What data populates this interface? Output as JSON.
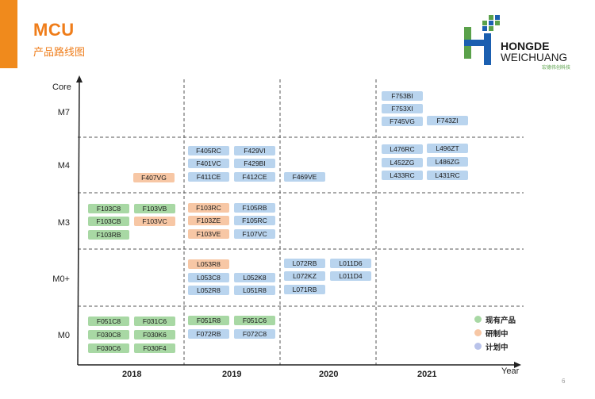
{
  "header": {
    "title": "MCU",
    "subtitle": "产品路线图"
  },
  "logo": {
    "line1": "HONGDE",
    "line2": "WEICHUANG",
    "line3": "宏德伟创科技",
    "green": "#5aa14a",
    "blue": "#1b5fb0"
  },
  "axis": {
    "y_title": "Core",
    "x_title": "Year",
    "cores": [
      "M7",
      "M4",
      "M3",
      "M0+",
      "M0"
    ],
    "years": [
      "2018",
      "2019",
      "2020",
      "2021"
    ]
  },
  "chips": {
    "m7": [
      "F753BI",
      "F753XI",
      "F745VG",
      "F743ZI"
    ],
    "m4": [
      "F407VG",
      "F405RC",
      "F429VI",
      "F401VC",
      "F429BI",
      "F411CE",
      "F412CE",
      "F469VE",
      "L476RC",
      "L496ZT",
      "L452ZG",
      "L486ZG",
      "L433RC",
      "L431RC"
    ],
    "m3": [
      "F103C8",
      "F103VB",
      "F103CB",
      "F103VC",
      "F103RB",
      "F103RC",
      "F105RB",
      "F103ZE",
      "F105RC",
      "F103VE",
      "F107VC"
    ],
    "m0plus": [
      "L053R8",
      "L053C8",
      "L052K8",
      "L052R8",
      "L051R8",
      "L072RB",
      "L011D6",
      "L072KZ",
      "L011D4",
      "L071RB"
    ],
    "m0": [
      "F051C8",
      "F031C6",
      "F030C8",
      "F030K6",
      "F030C6",
      "F030F4",
      "F051R8",
      "F051C6",
      "F072RB",
      "F072C8"
    ]
  },
  "legend": [
    {
      "label": "现有产品",
      "color": "#a8d8a4"
    },
    {
      "label": "研制中",
      "color": "#f7c7a5"
    },
    {
      "label": "计划中",
      "color": "#b9d4ee"
    }
  ],
  "page_number": "6"
}
